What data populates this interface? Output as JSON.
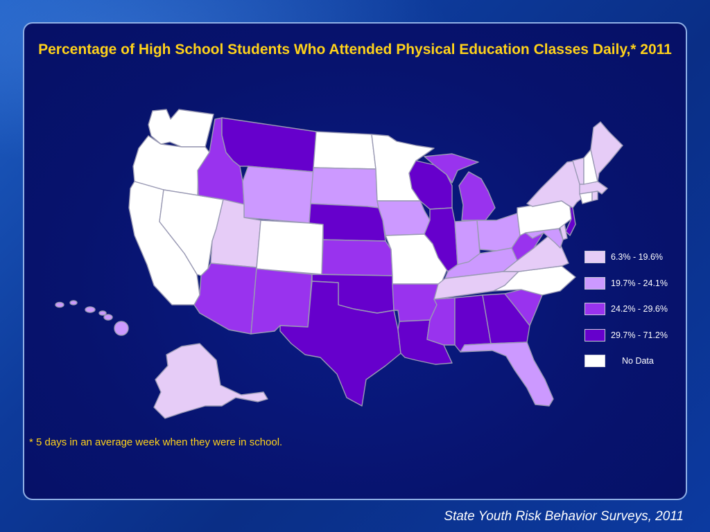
{
  "title": "Percentage of High School Students Who Attended Physical Education Classes Daily,* 2011",
  "footnote": "* 5 days in an average week when they were in school.",
  "source": "State Youth Risk Behavior Surveys, 2011",
  "legend": [
    {
      "label": "6.3% - 19.6%",
      "color": "#e6ccf7"
    },
    {
      "label": "19.7% - 24.1%",
      "color": "#cc99ff"
    },
    {
      "label": "24.2% - 29.6%",
      "color": "#9933ee"
    },
    {
      "label": "29.7% - 71.2%",
      "color": "#6600cc"
    },
    {
      "label": "No Data",
      "color": "#ffffff"
    }
  ],
  "state_classes": {
    "WA": 4,
    "OR": 4,
    "CA": 4,
    "NV": 4,
    "ID": 2,
    "MT": 3,
    "WY": 1,
    "UT": 0,
    "CO": 4,
    "AZ": 2,
    "NM": 2,
    "ND": 4,
    "SD": 1,
    "NE": 3,
    "KS": 2,
    "OK": 3,
    "TX": 3,
    "MN": 4,
    "IA": 1,
    "MO": 4,
    "AR": 2,
    "LA": 3,
    "WI": 3,
    "IL": 3,
    "MI": 2,
    "IN": 1,
    "OH": 1,
    "KY": 1,
    "TN": 0,
    "MS": 2,
    "AL": 3,
    "GA": 3,
    "FL": 1,
    "SC": 2,
    "NC": 4,
    "VA": 0,
    "WV": 2,
    "MD": 1,
    "DE": 0,
    "PA": 4,
    "NJ": 3,
    "NY": 0,
    "CT": 4,
    "RI": 0,
    "MA": 0,
    "VT": 0,
    "NH": 4,
    "ME": 0,
    "AK": 0,
    "HI": 1
  }
}
